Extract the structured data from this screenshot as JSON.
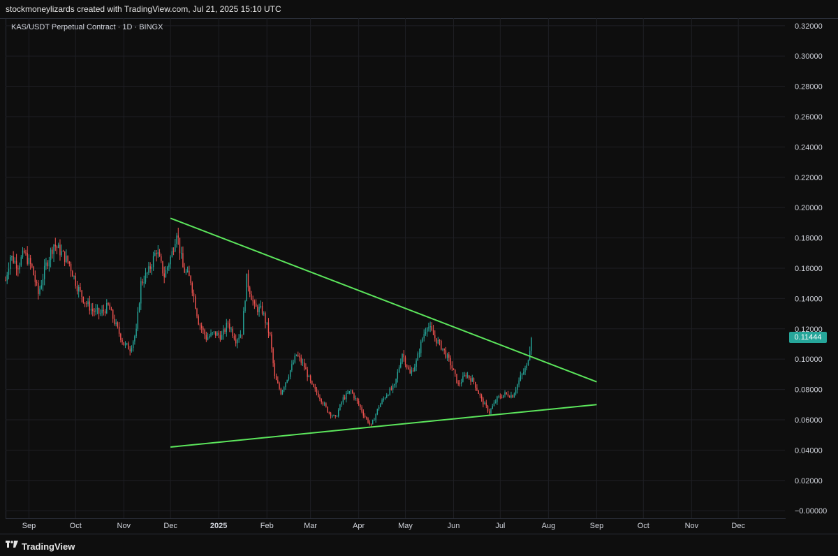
{
  "header": {
    "credit": "stockmoneylizards created with TradingView.com, Jul 21, 2025 15:10 UTC"
  },
  "chart_meta": {
    "symbol_title": "KAS/USDT Perpetual Contract · 1D · BINGX"
  },
  "footer": {
    "brand": "TradingView"
  },
  "colors": {
    "background": "#0e0e0e",
    "grid": "#1e1f24",
    "up_candle": "#26a69a",
    "down_candle": "#ef5350",
    "trendline": "#5ce65c",
    "last_price_tag": "#26a69a"
  },
  "icons": {
    "brand_logo": "tradingview-logo-icon"
  },
  "chart_data": {
    "type": "candlestick",
    "interval": "1D",
    "x_ticks": [
      "Sep",
      "Oct",
      "Nov",
      "Dec",
      "2025",
      "Feb",
      "Mar",
      "Apr",
      "May",
      "Jun",
      "Jul",
      "Aug",
      "Sep",
      "Oct",
      "Nov",
      "Dec"
    ],
    "y_ticks": [
      "0.32000",
      "0.30000",
      "0.28000",
      "0.26000",
      "0.24000",
      "0.22000",
      "0.20000",
      "0.18000",
      "0.16000",
      "0.14000",
      "0.12000",
      "0.10000",
      "0.08000",
      "0.06000",
      "0.04000",
      "0.02000",
      "−0.00000"
    ],
    "ylim": [
      -0.005,
      0.325
    ],
    "xlim": [
      "2024-08-17",
      "2025-12-31"
    ],
    "grid": true,
    "last_price": "0.11444",
    "price_path": [
      [
        "2024-08-17",
        0.152
      ],
      [
        "2024-08-20",
        0.168
      ],
      [
        "2024-08-25",
        0.162
      ],
      [
        "2024-08-29",
        0.17
      ],
      [
        "2024-09-03",
        0.16
      ],
      [
        "2024-09-07",
        0.143
      ],
      [
        "2024-09-12",
        0.162
      ],
      [
        "2024-09-17",
        0.176
      ],
      [
        "2024-09-22",
        0.17
      ],
      [
        "2024-09-27",
        0.163
      ],
      [
        "2024-10-02",
        0.148
      ],
      [
        "2024-10-07",
        0.138
      ],
      [
        "2024-10-12",
        0.132
      ],
      [
        "2024-10-17",
        0.13
      ],
      [
        "2024-10-22",
        0.135
      ],
      [
        "2024-10-27",
        0.122
      ],
      [
        "2024-11-01",
        0.11
      ],
      [
        "2024-11-05",
        0.107
      ],
      [
        "2024-11-09",
        0.118
      ],
      [
        "2024-11-12",
        0.15
      ],
      [
        "2024-11-17",
        0.158
      ],
      [
        "2024-11-22",
        0.172
      ],
      [
        "2024-11-27",
        0.155
      ],
      [
        "2024-12-02",
        0.17
      ],
      [
        "2024-12-05",
        0.185
      ],
      [
        "2024-12-09",
        0.16
      ],
      [
        "2024-12-14",
        0.152
      ],
      [
        "2024-12-19",
        0.125
      ],
      [
        "2024-12-24",
        0.114
      ],
      [
        "2024-12-29",
        0.117
      ],
      [
        "2025-01-03",
        0.115
      ],
      [
        "2025-01-07",
        0.124
      ],
      [
        "2025-01-12",
        0.113
      ],
      [
        "2025-01-16",
        0.118
      ],
      [
        "2025-01-19",
        0.153
      ],
      [
        "2025-01-24",
        0.134
      ],
      [
        "2025-01-29",
        0.132
      ],
      [
        "2025-02-03",
        0.115
      ],
      [
        "2025-02-06",
        0.088
      ],
      [
        "2025-02-10",
        0.078
      ],
      [
        "2025-02-15",
        0.09
      ],
      [
        "2025-02-20",
        0.103
      ],
      [
        "2025-02-25",
        0.095
      ],
      [
        "2025-03-02",
        0.082
      ],
      [
        "2025-03-07",
        0.075
      ],
      [
        "2025-03-12",
        0.066
      ],
      [
        "2025-03-17",
        0.061
      ],
      [
        "2025-03-22",
        0.074
      ],
      [
        "2025-03-27",
        0.079
      ],
      [
        "2025-04-01",
        0.07
      ],
      [
        "2025-04-05",
        0.062
      ],
      [
        "2025-04-09",
        0.056
      ],
      [
        "2025-04-14",
        0.069
      ],
      [
        "2025-04-19",
        0.077
      ],
      [
        "2025-04-24",
        0.082
      ],
      [
        "2025-04-29",
        0.104
      ],
      [
        "2025-05-04",
        0.09
      ],
      [
        "2025-05-08",
        0.098
      ],
      [
        "2025-05-12",
        0.114
      ],
      [
        "2025-05-15",
        0.123
      ],
      [
        "2025-05-20",
        0.114
      ],
      [
        "2025-05-25",
        0.107
      ],
      [
        "2025-05-30",
        0.097
      ],
      [
        "2025-06-04",
        0.083
      ],
      [
        "2025-06-09",
        0.09
      ],
      [
        "2025-06-14",
        0.085
      ],
      [
        "2025-06-19",
        0.073
      ],
      [
        "2025-06-24",
        0.065
      ],
      [
        "2025-06-29",
        0.074
      ],
      [
        "2025-07-04",
        0.077
      ],
      [
        "2025-07-09",
        0.076
      ],
      [
        "2025-07-14",
        0.088
      ],
      [
        "2025-07-18",
        0.095
      ],
      [
        "2025-07-21",
        0.114
      ]
    ],
    "trendlines": [
      {
        "name": "upper",
        "from": [
          "2024-12-01",
          0.193
        ],
        "to": [
          "2025-09-01",
          0.085
        ]
      },
      {
        "name": "lower",
        "from": [
          "2024-12-01",
          0.042
        ],
        "to": [
          "2025-09-01",
          0.07
        ]
      }
    ]
  }
}
